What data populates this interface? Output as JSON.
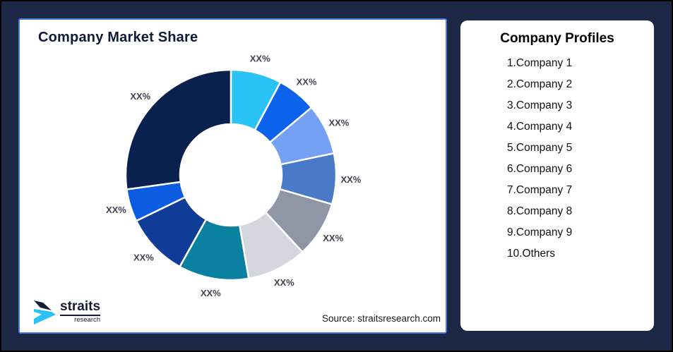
{
  "frame": {
    "background": "#1c2845"
  },
  "chart_card": {
    "title": "Company Market Share",
    "source": "Source: straitsresearch.com",
    "accent_border": "#4a77e8"
  },
  "logo": {
    "name": "straits",
    "subtitle": "research",
    "mark_navy": "#131c33",
    "mark_cyan": "#29c4f5"
  },
  "profiles_card": {
    "title": "Company Profiles",
    "items": [
      "1.Company 1",
      "2.Company 2",
      "3.Company 3",
      "4.Company 4",
      "5.Company 5",
      "6.Company 6",
      "7.Company 7",
      "8.Company 8",
      "9.Company 9",
      "10.Others"
    ]
  },
  "chart_data": {
    "type": "pie",
    "variant": "donut",
    "title": "Company Market Share",
    "start_angle_deg": 0,
    "direction": "clockwise",
    "inner_radius_ratio": 0.48,
    "legend": "none",
    "data_label_text": "XX%",
    "segments": [
      {
        "name": "Company 1",
        "label": "XX%",
        "value": 7.8,
        "color": "#29c4f5"
      },
      {
        "name": "Company 2",
        "label": "XX%",
        "value": 6.1,
        "color": "#0b63ec"
      },
      {
        "name": "Company 3",
        "label": "XX%",
        "value": 7.8,
        "color": "#74a1f4"
      },
      {
        "name": "Company 4",
        "label": "XX%",
        "value": 7.8,
        "color": "#4a79c8"
      },
      {
        "name": "Company 5",
        "label": "XX%",
        "value": 8.6,
        "color": "#8f96a6"
      },
      {
        "name": "Company 6",
        "label": "XX%",
        "value": 9.2,
        "color": "#d4d7dd"
      },
      {
        "name": "Company 7",
        "label": "XX%",
        "value": 10.8,
        "color": "#0a80a1"
      },
      {
        "name": "Company 8",
        "label": "XX%",
        "value": 9.7,
        "color": "#0e3c96"
      },
      {
        "name": "Company 9",
        "label": "XX%",
        "value": 5.0,
        "color": "#0b5ce0"
      },
      {
        "name": "Others",
        "label": "XX%",
        "value": 27.2,
        "color": "#0a2150"
      }
    ]
  }
}
